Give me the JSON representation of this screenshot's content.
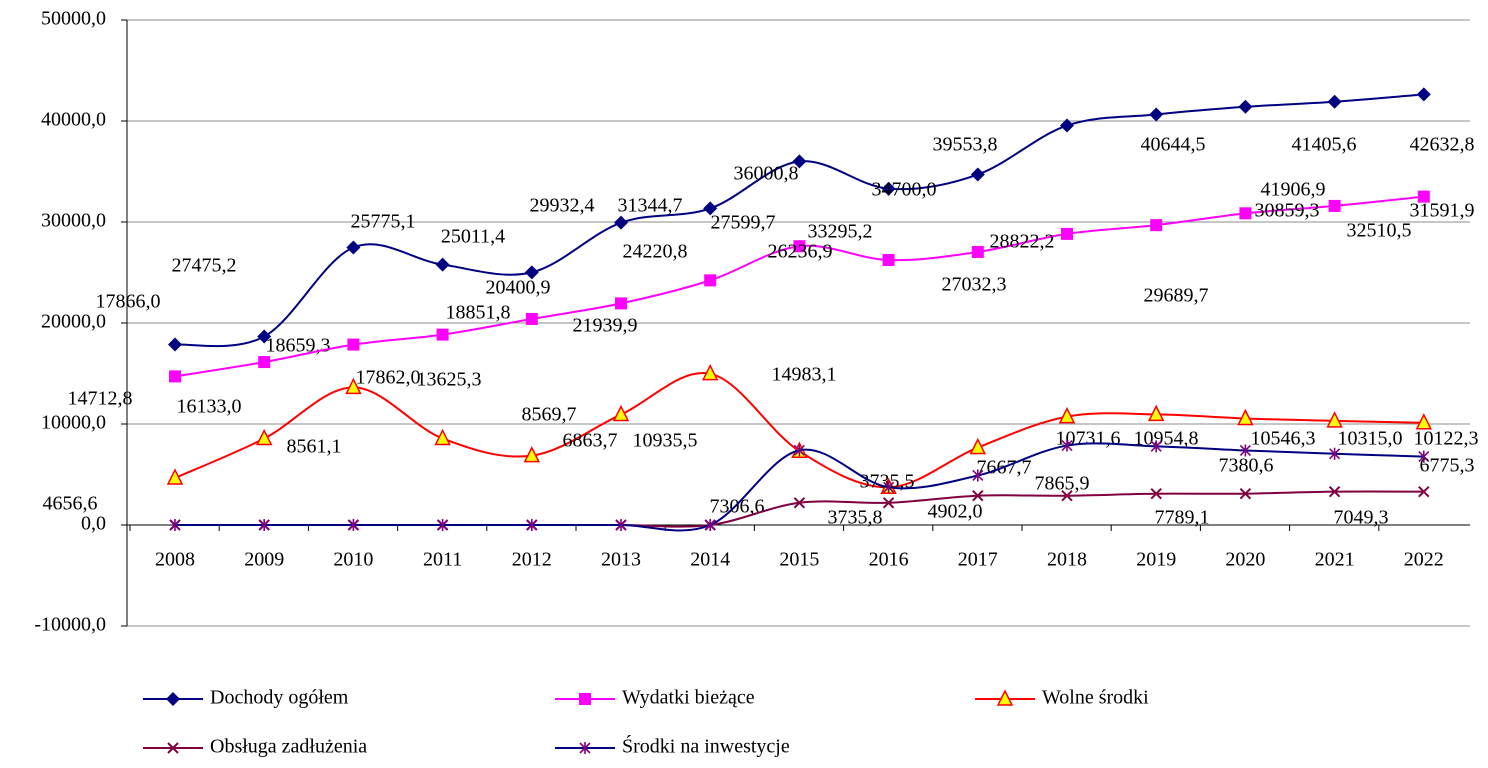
{
  "chart_data": {
    "type": "line",
    "categories": [
      "2008",
      "2009",
      "2010",
      "2011",
      "2012",
      "2013",
      "2014",
      "2015",
      "2016",
      "2017",
      "2018",
      "2019",
      "2020",
      "2021",
      "2022"
    ],
    "ylim": [
      -10000,
      50000
    ],
    "yticks": [
      {
        "value": -10000,
        "label": "-10000,0"
      },
      {
        "value": 0,
        "label": "0,0"
      },
      {
        "value": 10000,
        "label": "10000,0"
      },
      {
        "value": 20000,
        "label": "20000,0"
      },
      {
        "value": 30000,
        "label": "30000,0"
      },
      {
        "value": 40000,
        "label": "40000,0"
      },
      {
        "value": 50000,
        "label": "50000,0"
      }
    ],
    "grid": true,
    "series": [
      {
        "name": "Dochody ogółem",
        "color": "#000080",
        "marker": "diamond",
        "values": [
          17866.0,
          18659.3,
          27475.2,
          25775.1,
          25011.4,
          29932.4,
          31344.7,
          36000.8,
          33295.2,
          34700.0,
          39553.8,
          40644.5,
          41405.6,
          41906.9,
          42632.8
        ],
        "value_labels": [
          "17866,0",
          "18659,3",
          "27475,2",
          "25775,1",
          "25011,4",
          "29932,4",
          "31344,7",
          "36000,8",
          "33295,2",
          "34700,0",
          "39553,8",
          "40644,5",
          "41405,6",
          "41906,9",
          "42632,8"
        ]
      },
      {
        "name": "Wydatki bieżące",
        "color": "#ff00ff",
        "marker": "square",
        "values": [
          14712.8,
          16133.0,
          17862.0,
          18851.8,
          20400.9,
          21939.9,
          24220.8,
          27599.7,
          26236.9,
          27032.3,
          28822.2,
          29689.7,
          30859.3,
          31591.9,
          32510.5
        ],
        "value_labels": [
          "14712,8",
          "16133,0",
          "17862,0",
          "18851,8",
          "20400,9",
          "21939,9",
          "24220,8",
          "27599,7",
          "26236,9",
          "27032,3",
          "28822,2",
          "29689,7",
          "30859,3",
          "31591,9",
          "32510,5"
        ]
      },
      {
        "name": "Wolne środki",
        "color": "#ff0000",
        "marker": "triangle",
        "marker_fill": "#ffff00",
        "values": [
          4656.6,
          8561.1,
          13625.3,
          8569.7,
          6863.7,
          10935.5,
          14983.1,
          7306.6,
          3735.5,
          7667.7,
          10731.6,
          10954.8,
          10546.3,
          10315.0,
          10122.3
        ],
        "value_labels": [
          "4656,6",
          "8561,1",
          "13625,3",
          "8569,7",
          "6863,7",
          "10935,5",
          "14983,1",
          "7306,6",
          "3735,5",
          "7667,7",
          "10731,6",
          "10954,8",
          "10546,3",
          "10315,0",
          "10122,3"
        ]
      },
      {
        "name": "Obsługa zadłużenia",
        "color": "#800040",
        "marker": "x",
        "values": [
          0,
          0,
          0,
          0,
          0,
          0,
          0,
          2200,
          2200,
          2900,
          2900,
          3100,
          3100,
          3300,
          3300
        ]
      },
      {
        "name": "Środki na inwestycje",
        "color": "#000080",
        "marker": "star",
        "marker_color": "#800080",
        "values": [
          0,
          0,
          0,
          0,
          0,
          0,
          0,
          7400,
          3735.8,
          4902.0,
          7865.9,
          7789.1,
          7380.6,
          7049.3,
          6775.3
        ],
        "value_labels": [
          null,
          null,
          null,
          null,
          null,
          null,
          null,
          null,
          "3735,8",
          "4902,0",
          "7865,9",
          "7789,1",
          "7380,6",
          "7049,3",
          "6775,3"
        ]
      }
    ]
  }
}
